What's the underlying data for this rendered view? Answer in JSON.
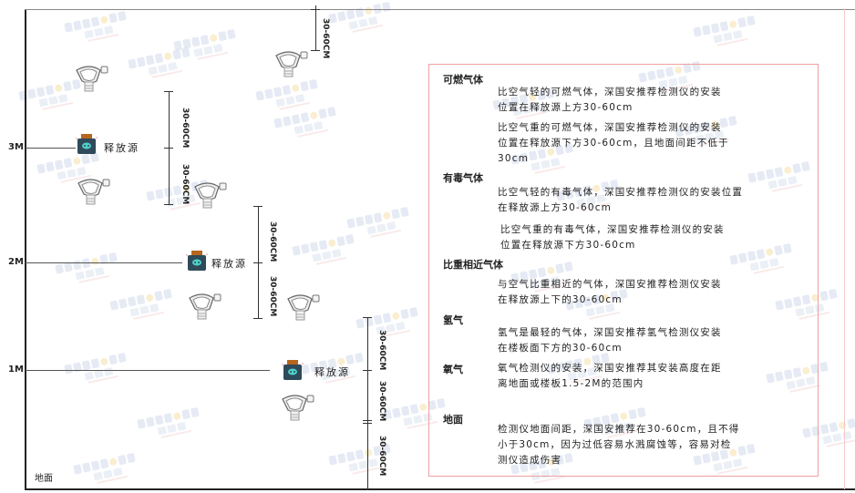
{
  "watermark": {
    "brand": "SINGOAN",
    "cn": "深国安"
  },
  "levels": [
    "3M",
    "2M",
    "1M"
  ],
  "ground_label": "地面",
  "source_label": "释放源",
  "dimension_label": "30-60CM",
  "colors": {
    "box_border": "#f0a0a0",
    "source_body": "#2f4a5a",
    "source_cap": "#b8661e",
    "source_face": "#4fd0c8"
  },
  "notes": [
    {
      "heading": "可燃气体",
      "paragraphs": [
        "比空气轻的可燃气体，深国安推荐检测仪的安装\n位置在释放源上方30-60cm",
        "比空气重的可燃气体，深国安推荐检测仪的安装\n位置在释放源下方30-60cm，且地面间距不低于\n30cm"
      ]
    },
    {
      "heading": "有毒气体",
      "paragraphs": [
        "比空气轻的有毒气体，深国安推荐检测仪的安装位置\n在释放源上方30-60cm",
        "比空气重的有毒气体，深国安推荐检测仪的安装\n位置在释放源下方30-60cm"
      ]
    },
    {
      "heading": "比重相近气体",
      "paragraphs": [
        "与空气比重相近的气体，深国安推荐检测仪安装\n在释放源上下的30-60cm"
      ]
    },
    {
      "heading": "氢气",
      "paragraphs": [
        "氢气是最轻的气体，深国安推荐氢气检测仪安装\n在楼板面下方的30-60cm"
      ]
    },
    {
      "heading": "氧气",
      "paragraphs": [
        "氧气检测仪的安装，深国安推荐其安装高度在距\n离地面或楼板1.5-2M的范围内"
      ]
    },
    {
      "heading": "地面",
      "paragraphs": [
        "检测仪地面间距，深国安推荐在30-60cm，且不得\n小于30cm，因为过低容易水溅腐蚀等，容易对检\n测仪造成伤害"
      ]
    }
  ]
}
